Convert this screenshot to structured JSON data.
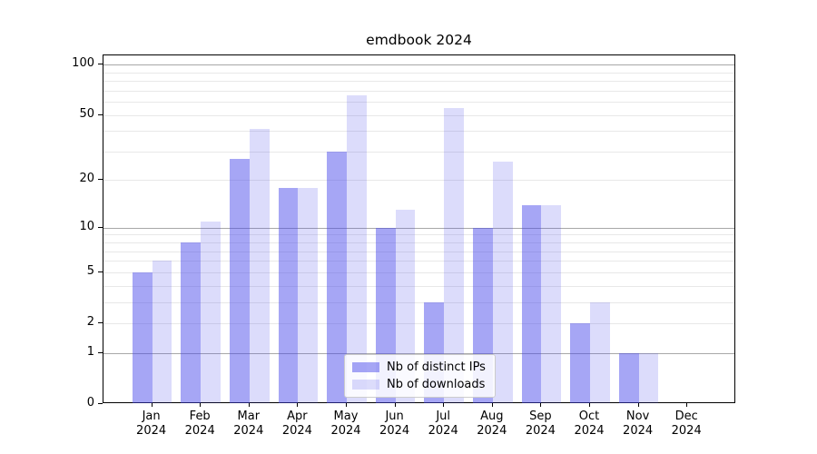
{
  "chart_data": {
    "type": "bar",
    "title": "emdbook 2024",
    "year": "2024",
    "months": [
      "Jan",
      "Feb",
      "Mar",
      "Apr",
      "May",
      "Jun",
      "Jul",
      "Aug",
      "Sep",
      "Oct",
      "Nov",
      "Dec"
    ],
    "series": [
      {
        "name": "Nb of distinct IPs",
        "color": "#4646eb",
        "opacity": 0.48,
        "values": [
          5,
          8,
          27,
          18,
          30,
          10,
          3,
          10,
          14,
          2,
          1,
          0
        ]
      },
      {
        "name": "Nb of downloads",
        "color": "#4646eb",
        "opacity": 0.19,
        "values": [
          6,
          11,
          41,
          18,
          66,
          13,
          55,
          26,
          14,
          3,
          1,
          0
        ]
      }
    ],
    "yscale": "log1p",
    "ylim": [
      0,
      113
    ],
    "yticks_labeled": [
      0,
      1,
      2,
      5,
      10,
      20,
      50,
      100
    ],
    "gridlines_decade": [
      1,
      10,
      100
    ],
    "gridlines_minor": [
      2,
      3,
      4,
      5,
      6,
      7,
      8,
      9,
      20,
      30,
      40,
      50,
      60,
      70,
      80,
      90
    ],
    "grid": "on",
    "legend_position": "lower center"
  },
  "colors": {
    "grid_minor": "#e8e8e8",
    "grid_decade": "#a8a8a8",
    "axis": "#000000",
    "background": "#ffffff"
  }
}
